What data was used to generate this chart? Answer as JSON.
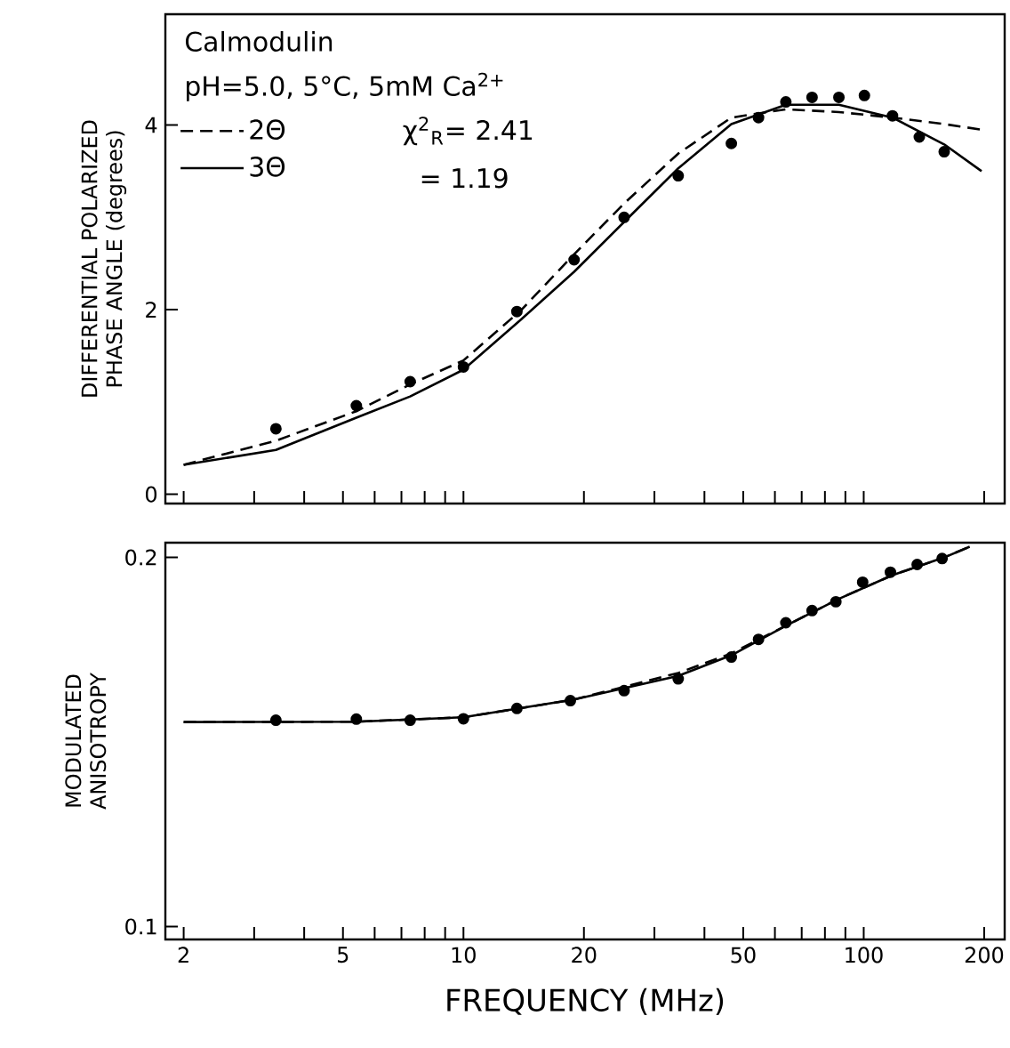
{
  "chart_data": [
    {
      "type": "line",
      "ylabel": "DIFFERENTIAL POLARIZED PHASE ANGLE (degrees)",
      "log": "x",
      "xlim": [
        1.8,
        225
      ],
      "ylim": [
        -0.1,
        5.2
      ],
      "xticks": [
        2,
        {
          "value": 3,
          "label": null
        },
        {
          "value": 4,
          "label": null
        },
        5,
        {
          "value": 6,
          "label": null
        },
        {
          "value": 7,
          "label": null
        },
        {
          "value": 8,
          "label": null
        },
        {
          "value": 9,
          "label": null
        },
        10,
        20,
        {
          "value": 30,
          "label": null
        },
        {
          "value": 40,
          "label": null
        },
        50,
        {
          "value": 60,
          "label": null
        },
        {
          "value": 70,
          "label": null
        },
        {
          "value": 80,
          "label": null
        },
        {
          "value": 90,
          "label": null
        },
        100,
        200
      ],
      "yticks": [
        0,
        2,
        4
      ],
      "tick_labels": "y",
      "legend": "top left",
      "grid": false,
      "annotations": [
        "Calmodulin",
        "pH=5.0, 5°C, 5mM Ca$^{2+}$",
        "χ$^{2}$$_{R}$= 2.41",
        "= 1.19"
      ],
      "series": [
        {
          "type": "scatter",
          "color": "#000000",
          "marker": "circle",
          "x": [
            3.4,
            5.4,
            7.36,
            10.0,
            13.6,
            18.9,
            25.2,
            34.4,
            46.7,
            54.6,
            63.9,
            74.3,
            86.7,
            100.4,
            118,
            137.7,
            158.9
          ],
          "values": [
            0.71,
            0.96,
            1.22,
            1.38,
            1.98,
            2.54,
            3.0,
            3.45,
            3.8,
            4.08,
            4.25,
            4.3,
            4.3,
            4.32,
            4.1,
            3.87,
            3.71
          ]
        },
        {
          "name": "2Θ",
          "color": "#000000",
          "line_style": "dashed",
          "x": [
            2,
            3.4,
            5.4,
            7.36,
            10.0,
            13.9,
            18.9,
            25.2,
            34.4,
            46.7,
            63.9,
            86.7,
            118,
            158.9,
            197
          ],
          "values": [
            0.32,
            0.58,
            0.9,
            1.19,
            1.45,
            1.99,
            2.6,
            3.15,
            3.69,
            4.08,
            4.17,
            4.14,
            4.08,
            4.01,
            3.95
          ]
        },
        {
          "name": "3Θ",
          "color": "#000000",
          "line_style": "solid",
          "x": [
            2,
            3.4,
            5.4,
            7.36,
            10.0,
            13.9,
            18.9,
            25.2,
            34.4,
            46.7,
            63.9,
            86.7,
            118,
            158.9,
            197
          ],
          "values": [
            0.32,
            0.48,
            0.83,
            1.06,
            1.35,
            1.89,
            2.41,
            2.95,
            3.53,
            4.01,
            4.22,
            4.22,
            4.08,
            3.79,
            3.5
          ]
        }
      ]
    },
    {
      "type": "line",
      "xlabel": "FREQUENCY (MHz)",
      "ylabel": "MODULATED ANISOTROPY",
      "log": "x",
      "xlim": [
        1.8,
        225
      ],
      "ylim": [
        0.0965,
        0.204
      ],
      "xticks": [
        2,
        {
          "value": 3,
          "label": null
        },
        {
          "value": 4,
          "label": null
        },
        5,
        {
          "value": 6,
          "label": null
        },
        {
          "value": 7,
          "label": null
        },
        {
          "value": 8,
          "label": null
        },
        {
          "value": 9,
          "label": null
        },
        10,
        20,
        {
          "value": 30,
          "label": null
        },
        {
          "value": 40,
          "label": null
        },
        50,
        {
          "value": 60,
          "label": null
        },
        {
          "value": 70,
          "label": null
        },
        {
          "value": 80,
          "label": null
        },
        {
          "value": 90,
          "label": null
        },
        100,
        200
      ],
      "yticks": [
        0.1,
        0.2
      ],
      "grid": false,
      "series": [
        {
          "type": "scatter",
          "color": "#000000",
          "marker": "circle",
          "x": [
            3.4,
            5.4,
            7.36,
            10.0,
            13.6,
            18.5,
            25.2,
            34.4,
            46.7,
            54.6,
            63.9,
            74.3,
            85.2,
            99.4,
            116.6,
            136,
            157
          ],
          "values": [
            0.1559,
            0.1562,
            0.1559,
            0.1563,
            0.1591,
            0.1612,
            0.1639,
            0.1671,
            0.173,
            0.1778,
            0.1823,
            0.1856,
            0.188,
            0.1933,
            0.196,
            0.1981,
            0.1997
          ]
        },
        {
          "color": "#000000",
          "line_style": "dashed",
          "x": [
            2,
            5.4,
            10.0,
            18.9,
            34.4,
            46.7,
            63.9,
            86.7,
            118,
            158.9,
            184
          ],
          "values": [
            0.1554,
            0.1555,
            0.1567,
            0.1615,
            0.1687,
            0.174,
            0.1815,
            0.1888,
            0.1952,
            0.2,
            0.2029
          ]
        },
        {
          "color": "#000000",
          "line_style": "solid",
          "x": [
            2,
            5.4,
            10.0,
            18.9,
            34.4,
            46.7,
            63.9,
            86.7,
            118,
            158.9,
            184
          ],
          "values": [
            0.1554,
            0.1555,
            0.1567,
            0.1615,
            0.1679,
            0.1735,
            0.1815,
            0.1888,
            0.1952,
            0.2,
            0.2029
          ]
        }
      ]
    }
  ]
}
